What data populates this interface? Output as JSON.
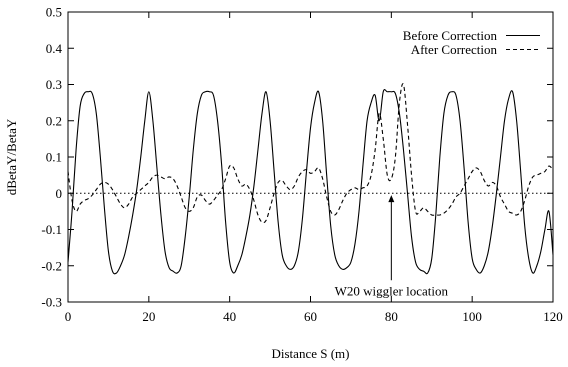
{
  "chart_data": {
    "type": "line",
    "xlabel": "Distance S (m)",
    "ylabel": "dBetaY/BetaY",
    "xlim": [
      0,
      120
    ],
    "ylim": [
      -0.3,
      0.5
    ],
    "xticks": [
      0,
      20,
      40,
      60,
      80,
      100,
      120
    ],
    "yticks": [
      -0.3,
      -0.2,
      -0.1,
      0,
      0.1,
      0.2,
      0.3,
      0.4,
      0.5
    ],
    "xtick_labels": [
      "0",
      "20",
      "40",
      "60",
      "80",
      "100",
      "120"
    ],
    "ytick_labels": [
      "-0.3",
      "-0.2",
      "-0.1",
      "0",
      "0.1",
      "0.2",
      "0.3",
      "0.4",
      "0.5"
    ],
    "grid": false,
    "legend_position": "top-right",
    "series": [
      {
        "name": "Before Correction",
        "style": "solid",
        "x": [
          0,
          1,
          2,
          3,
          4,
          5,
          6,
          7,
          8,
          9,
          10,
          11,
          12,
          13,
          14,
          15,
          16,
          17,
          18,
          19,
          20,
          21,
          22,
          23,
          24,
          25,
          26,
          27,
          28,
          29,
          30,
          31,
          32,
          33,
          34,
          35,
          36,
          37,
          38,
          39,
          40,
          41,
          42,
          43,
          44,
          45,
          46,
          47,
          48,
          49,
          50,
          51,
          52,
          53,
          54,
          55,
          56,
          57,
          58,
          59,
          60,
          61,
          62,
          63,
          64,
          65,
          66,
          67,
          68,
          69,
          70,
          71,
          72,
          73,
          74,
          75,
          76,
          77,
          78,
          79,
          80,
          81,
          82,
          83,
          84,
          85,
          86,
          87,
          88,
          89,
          90,
          91,
          92,
          93,
          94,
          95,
          96,
          97,
          98,
          99,
          100,
          101,
          102,
          103,
          104,
          105,
          106,
          107,
          108,
          109,
          110,
          111,
          112,
          113,
          114,
          115,
          116,
          117,
          118,
          119,
          120
        ],
        "y": [
          -0.19,
          -0.05,
          0.12,
          0.24,
          0.275,
          0.28,
          0.275,
          0.22,
          0.1,
          -0.04,
          -0.16,
          -0.215,
          -0.22,
          -0.2,
          -0.17,
          -0.12,
          -0.06,
          0.01,
          0.1,
          0.2,
          0.28,
          0.2,
          0.07,
          -0.06,
          -0.16,
          -0.205,
          -0.215,
          -0.22,
          -0.2,
          -0.12,
          -0.01,
          0.12,
          0.22,
          0.27,
          0.28,
          0.28,
          0.27,
          0.2,
          0.08,
          -0.08,
          -0.19,
          -0.22,
          -0.2,
          -0.17,
          -0.12,
          -0.06,
          0.02,
          0.12,
          0.22,
          0.28,
          0.2,
          0.06,
          -0.08,
          -0.17,
          -0.2,
          -0.21,
          -0.2,
          -0.16,
          -0.07,
          0.06,
          0.18,
          0.25,
          0.28,
          0.2,
          0.05,
          -0.09,
          -0.17,
          -0.2,
          -0.21,
          -0.205,
          -0.19,
          -0.14,
          -0.05,
          0.08,
          0.2,
          0.25,
          0.27,
          0.2,
          0.28,
          0.28,
          0.28,
          0.275,
          0.22,
          0.12,
          0.0,
          -0.12,
          -0.19,
          -0.21,
          -0.215,
          -0.22,
          -0.18,
          -0.06,
          0.1,
          0.22,
          0.27,
          0.28,
          0.27,
          0.2,
          0.07,
          -0.08,
          -0.18,
          -0.21,
          -0.22,
          -0.2,
          -0.16,
          -0.09,
          0.0,
          0.1,
          0.2,
          0.26,
          0.28,
          0.2,
          0.06,
          -0.09,
          -0.18,
          -0.22,
          -0.2,
          -0.16,
          -0.1,
          -0.05,
          -0.17
        ]
      },
      {
        "name": "After Correction",
        "style": "dashed",
        "x": [
          0,
          1,
          2,
          3,
          4,
          5,
          6,
          7,
          8,
          9,
          10,
          11,
          12,
          13,
          14,
          15,
          16,
          17,
          18,
          19,
          20,
          21,
          22,
          23,
          24,
          25,
          26,
          27,
          28,
          29,
          30,
          31,
          32,
          33,
          34,
          35,
          36,
          37,
          38,
          39,
          40,
          41,
          42,
          43,
          44,
          45,
          46,
          47,
          48,
          49,
          50,
          51,
          52,
          53,
          54,
          55,
          56,
          57,
          58,
          59,
          60,
          61,
          62,
          63,
          64,
          65,
          66,
          67,
          68,
          69,
          70,
          71,
          72,
          73,
          74,
          75,
          76,
          77,
          78,
          79,
          80,
          81,
          82,
          83,
          84,
          85,
          86,
          87,
          88,
          89,
          90,
          91,
          92,
          93,
          94,
          95,
          96,
          97,
          98,
          99,
          100,
          101,
          102,
          103,
          104,
          105,
          106,
          107,
          108,
          109,
          110,
          111,
          112,
          113,
          114,
          115,
          116,
          117,
          118,
          119,
          120
        ],
        "y": [
          0.06,
          -0.02,
          -0.05,
          -0.03,
          -0.02,
          -0.015,
          -0.005,
          0.01,
          0.025,
          0.03,
          0.025,
          0.01,
          -0.01,
          -0.03,
          -0.04,
          -0.03,
          -0.01,
          0.0,
          0.01,
          0.02,
          0.03,
          0.045,
          0.05,
          0.045,
          0.04,
          0.045,
          0.04,
          0.02,
          -0.01,
          -0.04,
          -0.05,
          -0.04,
          -0.01,
          -0.005,
          -0.02,
          -0.03,
          -0.02,
          -0.005,
          0.01,
          0.04,
          0.075,
          0.07,
          0.04,
          0.02,
          0.025,
          0.01,
          -0.02,
          -0.06,
          -0.08,
          -0.075,
          -0.04,
          0.0,
          0.03,
          0.035,
          0.02,
          0.01,
          0.02,
          0.045,
          0.06,
          0.065,
          0.055,
          0.06,
          0.07,
          0.04,
          -0.01,
          -0.05,
          -0.06,
          -0.045,
          -0.02,
          0.0,
          0.01,
          0.015,
          0.01,
          0.015,
          0.02,
          0.05,
          0.12,
          0.22,
          0.15,
          0.05,
          0.04,
          0.1,
          0.25,
          0.3,
          0.19,
          0.05,
          -0.05,
          -0.05,
          -0.04,
          -0.05,
          -0.06,
          -0.06,
          -0.06,
          -0.055,
          -0.045,
          -0.03,
          -0.01,
          0.0,
          0.02,
          0.04,
          0.06,
          0.07,
          0.06,
          0.035,
          0.02,
          0.03,
          0.02,
          -0.01,
          -0.03,
          -0.05,
          -0.055,
          -0.06,
          -0.05,
          -0.02,
          0.02,
          0.045,
          0.05,
          0.055,
          0.06,
          0.075,
          0.065
        ]
      }
    ],
    "reference_line": {
      "y": 0,
      "style": "dotted"
    },
    "annotations": [
      {
        "text": "W20 wiggler location",
        "arrow_x": 80,
        "arrow_y_from": -0.24,
        "arrow_y_to": -0.005
      }
    ]
  },
  "colors": {
    "series_stroke": "#000000",
    "axis": "#000000",
    "background": "#ffffff"
  }
}
